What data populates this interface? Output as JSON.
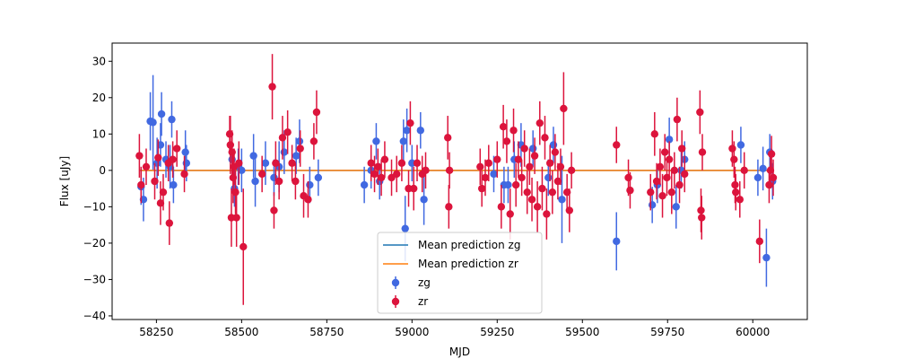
{
  "chart_data": {
    "type": "scatter",
    "xlabel": "MJD",
    "ylabel": "Flux [uJy]",
    "xlim": [
      58120,
      60160
    ],
    "ylim": [
      -41,
      35
    ],
    "x_ticks": [
      58250,
      58500,
      58750,
      59000,
      59250,
      59500,
      59750,
      60000
    ],
    "y_ticks": [
      -40,
      -30,
      -20,
      -10,
      0,
      10,
      20,
      30
    ],
    "grid": false,
    "legend_position": "bottom-center",
    "mean_predictions": [
      {
        "name": "Mean prediction zg",
        "color": "#1f77b4",
        "y": 0
      },
      {
        "name": "Mean prediction zr",
        "color": "#ff7f0e",
        "y": 0
      }
    ],
    "series": [
      {
        "name": "zg",
        "color": "#4169e1",
        "points": [
          {
            "x": 58205,
            "y": -4.5,
            "err": 5
          },
          {
            "x": 58212,
            "y": -8.0,
            "err": 6
          },
          {
            "x": 58232,
            "y": 13.5,
            "err": 8
          },
          {
            "x": 58240,
            "y": 13.2,
            "err": 13
          },
          {
            "x": 58252,
            "y": 2.0,
            "err": 7
          },
          {
            "x": 58262,
            "y": 7.0,
            "err": 6
          },
          {
            "x": 58265,
            "y": 15.5,
            "err": 6
          },
          {
            "x": 58278,
            "y": 3.0,
            "err": 5
          },
          {
            "x": 58290,
            "y": 1.0,
            "err": 6
          },
          {
            "x": 58295,
            "y": 14.0,
            "err": 5
          },
          {
            "x": 58300,
            "y": -4.0,
            "err": 5
          },
          {
            "x": 58335,
            "y": 5.0,
            "err": 6
          },
          {
            "x": 58338,
            "y": 2.0,
            "err": 5
          },
          {
            "x": 58472,
            "y": 3.0,
            "err": 5
          },
          {
            "x": 58479,
            "y": -5.0,
            "err": 5
          },
          {
            "x": 58490,
            "y": 1.0,
            "err": 5
          },
          {
            "x": 58500,
            "y": 0.0,
            "err": 6
          },
          {
            "x": 58535,
            "y": 4.0,
            "err": 6
          },
          {
            "x": 58540,
            "y": -3.0,
            "err": 7
          },
          {
            "x": 58570,
            "y": 2.0,
            "err": 6
          },
          {
            "x": 58595,
            "y": -2.0,
            "err": 5
          },
          {
            "x": 58610,
            "y": 1.0,
            "err": 7
          },
          {
            "x": 58625,
            "y": 5.0,
            "err": 6
          },
          {
            "x": 58660,
            "y": 4.0,
            "err": 5
          },
          {
            "x": 58670,
            "y": 8.0,
            "err": 6
          },
          {
            "x": 58700,
            "y": -4.0,
            "err": 5
          },
          {
            "x": 58725,
            "y": -2.0,
            "err": 5
          },
          {
            "x": 58860,
            "y": -4.0,
            "err": 5
          },
          {
            "x": 58880,
            "y": 0.0,
            "err": 5
          },
          {
            "x": 58895,
            "y": 8.0,
            "err": 5
          },
          {
            "x": 58905,
            "y": -3.0,
            "err": 5
          },
          {
            "x": 58975,
            "y": 8.0,
            "err": 6
          },
          {
            "x": 58980,
            "y": -16.0,
            "err": 9
          },
          {
            "x": 58985,
            "y": 11.0,
            "err": 6
          },
          {
            "x": 59000,
            "y": 2.0,
            "err": 5
          },
          {
            "x": 59025,
            "y": 11.0,
            "err": 5
          },
          {
            "x": 59035,
            "y": -8.0,
            "err": 7
          },
          {
            "x": 59240,
            "y": -1.0,
            "err": 5
          },
          {
            "x": 59270,
            "y": -4.0,
            "err": 5
          },
          {
            "x": 59282,
            "y": -4.0,
            "err": 5
          },
          {
            "x": 59300,
            "y": 3.0,
            "err": 5
          },
          {
            "x": 59320,
            "y": 7.0,
            "err": 6
          },
          {
            "x": 59355,
            "y": 6.0,
            "err": 5
          },
          {
            "x": 59400,
            "y": -2.0,
            "err": 5
          },
          {
            "x": 59415,
            "y": 7.0,
            "err": 5
          },
          {
            "x": 59440,
            "y": -8.0,
            "err": 12
          },
          {
            "x": 59600,
            "y": -19.5,
            "err": 8
          },
          {
            "x": 59705,
            "y": -9.5,
            "err": 5
          },
          {
            "x": 59720,
            "y": -4.0,
            "err": 5
          },
          {
            "x": 59755,
            "y": 8.5,
            "err": 6
          },
          {
            "x": 59775,
            "y": -10.0,
            "err": 6
          },
          {
            "x": 59790,
            "y": 0.0,
            "err": 5
          },
          {
            "x": 59800,
            "y": 3.0,
            "err": 5
          },
          {
            "x": 59965,
            "y": 7.0,
            "err": 5
          },
          {
            "x": 60015,
            "y": -2.0,
            "err": 5
          },
          {
            "x": 60030,
            "y": 0.5,
            "err": 6
          },
          {
            "x": 60040,
            "y": -24.0,
            "err": 8
          },
          {
            "x": 60050,
            "y": 5.0,
            "err": 5
          },
          {
            "x": 60058,
            "y": -3.0,
            "err": 5
          }
        ]
      },
      {
        "name": "zr",
        "color": "#dc143c",
        "points": [
          {
            "x": 58200,
            "y": 4.0,
            "err": 6
          },
          {
            "x": 58205,
            "y": -4.0,
            "err": 5
          },
          {
            "x": 58220,
            "y": 1.0,
            "err": 5
          },
          {
            "x": 58245,
            "y": -3.0,
            "err": 5
          },
          {
            "x": 58255,
            "y": 3.5,
            "err": 5
          },
          {
            "x": 58262,
            "y": -9.0,
            "err": 6
          },
          {
            "x": 58270,
            "y": -6.0,
            "err": 5
          },
          {
            "x": 58285,
            "y": 2.0,
            "err": 5
          },
          {
            "x": 58288,
            "y": -14.5,
            "err": 6
          },
          {
            "x": 58298,
            "y": 3.0,
            "err": 5
          },
          {
            "x": 58310,
            "y": 6.0,
            "err": 5
          },
          {
            "x": 58332,
            "y": -1.0,
            "err": 5
          },
          {
            "x": 58465,
            "y": 10.0,
            "err": 5
          },
          {
            "x": 58467,
            "y": 7.0,
            "err": 8
          },
          {
            "x": 58470,
            "y": -13.0,
            "err": 8
          },
          {
            "x": 58472,
            "y": 5.0,
            "err": 6
          },
          {
            "x": 58475,
            "y": -2.0,
            "err": 7
          },
          {
            "x": 58478,
            "y": 1.0,
            "err": 5
          },
          {
            "x": 58482,
            "y": -6.0,
            "err": 6
          },
          {
            "x": 58485,
            "y": -13.0,
            "err": 8
          },
          {
            "x": 58492,
            "y": 2.0,
            "err": 6
          },
          {
            "x": 58505,
            "y": -21.0,
            "err": 16
          },
          {
            "x": 58560,
            "y": -1.0,
            "err": 5
          },
          {
            "x": 58590,
            "y": 23.0,
            "err": 9
          },
          {
            "x": 58595,
            "y": -11.0,
            "err": 5
          },
          {
            "x": 58600,
            "y": 2.0,
            "err": 6
          },
          {
            "x": 58610,
            "y": -3.0,
            "err": 5
          },
          {
            "x": 58620,
            "y": 9.0,
            "err": 6
          },
          {
            "x": 58635,
            "y": 10.5,
            "err": 6
          },
          {
            "x": 58648,
            "y": 2.0,
            "err": 5
          },
          {
            "x": 58658,
            "y": -3.0,
            "err": 5
          },
          {
            "x": 58672,
            "y": 6.0,
            "err": 5
          },
          {
            "x": 58682,
            "y": -7.0,
            "err": 6
          },
          {
            "x": 58695,
            "y": -8.0,
            "err": 5
          },
          {
            "x": 58712,
            "y": 8.0,
            "err": 5
          },
          {
            "x": 58720,
            "y": 16.0,
            "err": 6
          },
          {
            "x": 58880,
            "y": 2.0,
            "err": 5
          },
          {
            "x": 58890,
            "y": -1.0,
            "err": 5
          },
          {
            "x": 58900,
            "y": 1.0,
            "err": 5
          },
          {
            "x": 58910,
            "y": -2.0,
            "err": 5
          },
          {
            "x": 58920,
            "y": 3.0,
            "err": 5
          },
          {
            "x": 58940,
            "y": -2.0,
            "err": 5
          },
          {
            "x": 58955,
            "y": -1.0,
            "err": 5
          },
          {
            "x": 58970,
            "y": 2.0,
            "err": 5
          },
          {
            "x": 58990,
            "y": -5.0,
            "err": 5
          },
          {
            "x": 58995,
            "y": 13.0,
            "err": 6
          },
          {
            "x": 59005,
            "y": -5.0,
            "err": 6
          },
          {
            "x": 59015,
            "y": 2.0,
            "err": 5
          },
          {
            "x": 59030,
            "y": -1.0,
            "err": 5
          },
          {
            "x": 59040,
            "y": 0.0,
            "err": 5
          },
          {
            "x": 59105,
            "y": 9.0,
            "err": 6
          },
          {
            "x": 59108,
            "y": -10.0,
            "err": 6
          },
          {
            "x": 59110,
            "y": 0.0,
            "err": 5
          },
          {
            "x": 59200,
            "y": 1.0,
            "err": 5
          },
          {
            "x": 59205,
            "y": -5.0,
            "err": 5
          },
          {
            "x": 59215,
            "y": -2.0,
            "err": 5
          },
          {
            "x": 59225,
            "y": 2.0,
            "err": 5
          },
          {
            "x": 59250,
            "y": 3.0,
            "err": 5
          },
          {
            "x": 59262,
            "y": -10.0,
            "err": 6
          },
          {
            "x": 59268,
            "y": 12.0,
            "err": 6
          },
          {
            "x": 59278,
            "y": 8.0,
            "err": 6
          },
          {
            "x": 59288,
            "y": -12.0,
            "err": 7
          },
          {
            "x": 59298,
            "y": 11.0,
            "err": 6
          },
          {
            "x": 59305,
            "y": -4.0,
            "err": 6
          },
          {
            "x": 59312,
            "y": 3.0,
            "err": 5
          },
          {
            "x": 59322,
            "y": -2.0,
            "err": 5
          },
          {
            "x": 59330,
            "y": 6.0,
            "err": 5
          },
          {
            "x": 59338,
            "y": -6.0,
            "err": 6
          },
          {
            "x": 59345,
            "y": 1.0,
            "err": 5
          },
          {
            "x": 59352,
            "y": -8.0,
            "err": 6
          },
          {
            "x": 59360,
            "y": 4.0,
            "err": 5
          },
          {
            "x": 59368,
            "y": -10.0,
            "err": 7
          },
          {
            "x": 59375,
            "y": 13.0,
            "err": 6
          },
          {
            "x": 59382,
            "y": -5.0,
            "err": 6
          },
          {
            "x": 59390,
            "y": 9.0,
            "err": 6
          },
          {
            "x": 59395,
            "y": -12.0,
            "err": 7
          },
          {
            "x": 59405,
            "y": 2.0,
            "err": 5
          },
          {
            "x": 59412,
            "y": -6.0,
            "err": 6
          },
          {
            "x": 59420,
            "y": 5.0,
            "err": 5
          },
          {
            "x": 59428,
            "y": -3.0,
            "err": 5
          },
          {
            "x": 59436,
            "y": 1.0,
            "err": 5
          },
          {
            "x": 59445,
            "y": 17.0,
            "err": 10
          },
          {
            "x": 59455,
            "y": -6.0,
            "err": 5
          },
          {
            "x": 59462,
            "y": -11.0,
            "err": 6
          },
          {
            "x": 59468,
            "y": 0.0,
            "err": 5
          },
          {
            "x": 59600,
            "y": 7.0,
            "err": 5
          },
          {
            "x": 59635,
            "y": -2.0,
            "err": 5
          },
          {
            "x": 59640,
            "y": -5.5,
            "err": 5
          },
          {
            "x": 59700,
            "y": -6.0,
            "err": 5
          },
          {
            "x": 59712,
            "y": 10.0,
            "err": 6
          },
          {
            "x": 59718,
            "y": -3.0,
            "err": 5
          },
          {
            "x": 59728,
            "y": 1.0,
            "err": 5
          },
          {
            "x": 59735,
            "y": -7.0,
            "err": 6
          },
          {
            "x": 59742,
            "y": 5.0,
            "err": 5
          },
          {
            "x": 59748,
            "y": -2.0,
            "err": 5
          },
          {
            "x": 59755,
            "y": 3.0,
            "err": 5
          },
          {
            "x": 59762,
            "y": -6.0,
            "err": 6
          },
          {
            "x": 59770,
            "y": 0.0,
            "err": 5
          },
          {
            "x": 59778,
            "y": 14.0,
            "err": 6
          },
          {
            "x": 59785,
            "y": -4.0,
            "err": 5
          },
          {
            "x": 59792,
            "y": 6.0,
            "err": 5
          },
          {
            "x": 59800,
            "y": -1.0,
            "err": 5
          },
          {
            "x": 59845,
            "y": 16.0,
            "err": 6
          },
          {
            "x": 59848,
            "y": -11.0,
            "err": 6
          },
          {
            "x": 59850,
            "y": -13.0,
            "err": 6
          },
          {
            "x": 59852,
            "y": 5.0,
            "err": 5
          },
          {
            "x": 59940,
            "y": 6.0,
            "err": 5
          },
          {
            "x": 59945,
            "y": 3.0,
            "err": 5
          },
          {
            "x": 59948,
            "y": -4.0,
            "err": 5
          },
          {
            "x": 59950,
            "y": -6.0,
            "err": 5
          },
          {
            "x": 59962,
            "y": -8.0,
            "err": 5
          },
          {
            "x": 59975,
            "y": 0.0,
            "err": 5
          },
          {
            "x": 60020,
            "y": -19.5,
            "err": 6
          },
          {
            "x": 60048,
            "y": -4.0,
            "err": 5
          },
          {
            "x": 60052,
            "y": 0.0,
            "err": 5
          },
          {
            "x": 60055,
            "y": 4.5,
            "err": 5
          },
          {
            "x": 60060,
            "y": -2.0,
            "err": 5
          }
        ]
      }
    ]
  }
}
